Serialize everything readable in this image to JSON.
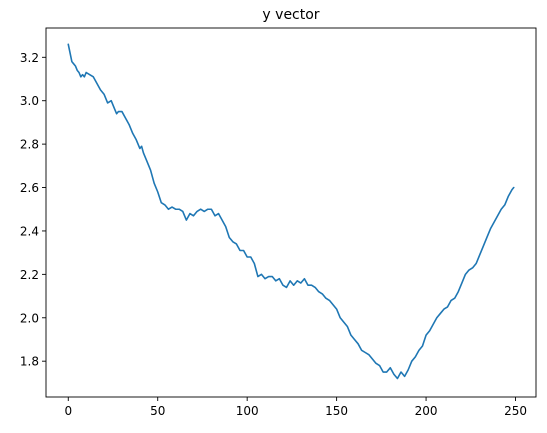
{
  "chart_data": {
    "type": "line",
    "title": "y vector",
    "xlabel": "",
    "ylabel": "",
    "xlim": [
      -12.45,
      261.45
    ],
    "ylim": [
      1.635,
      3.335
    ],
    "xticks": [
      0,
      50,
      100,
      150,
      200,
      250
    ],
    "yticks": [
      1.8,
      2.0,
      2.2,
      2.4,
      2.6,
      2.8,
      3.0,
      3.2
    ],
    "xtick_labels": [
      "0",
      "50",
      "100",
      "150",
      "200",
      "250"
    ],
    "ytick_labels": [
      "1.8",
      "2.0",
      "2.2",
      "2.4",
      "2.6",
      "2.8",
      "3.0",
      "3.2"
    ],
    "grid": false,
    "legend": false,
    "series": [
      {
        "color": "#1f77b4",
        "x": [
          0,
          1,
          2,
          3,
          4,
          5,
          6,
          7,
          8,
          9,
          10,
          12,
          14,
          16,
          18,
          20,
          22,
          24,
          26,
          27,
          28,
          30,
          32,
          34,
          35,
          36,
          38,
          40,
          41,
          42,
          44,
          46,
          48,
          50,
          52,
          54,
          56,
          58,
          60,
          62,
          64,
          66,
          68,
          70,
          72,
          74,
          76,
          78,
          80,
          82,
          84,
          86,
          88,
          90,
          92,
          94,
          96,
          98,
          100,
          102,
          104,
          106,
          108,
          110,
          112,
          114,
          116,
          118,
          120,
          122,
          124,
          126,
          128,
          130,
          132,
          134,
          136,
          138,
          140,
          142,
          144,
          146,
          148,
          150,
          152,
          154,
          156,
          158,
          160,
          162,
          164,
          166,
          168,
          170,
          172,
          174,
          176,
          178,
          180,
          182,
          184,
          186,
          188,
          190,
          192,
          194,
          196,
          198,
          200,
          202,
          204,
          206,
          208,
          210,
          212,
          214,
          216,
          218,
          220,
          222,
          224,
          226,
          228,
          230,
          232,
          234,
          236,
          238,
          240,
          242,
          244,
          246,
          248,
          249
        ],
        "y": [
          3.26,
          3.22,
          3.18,
          3.17,
          3.16,
          3.14,
          3.13,
          3.11,
          3.12,
          3.11,
          3.13,
          3.12,
          3.11,
          3.08,
          3.05,
          3.03,
          2.99,
          3.0,
          2.96,
          2.94,
          2.95,
          2.95,
          2.92,
          2.89,
          2.87,
          2.85,
          2.82,
          2.78,
          2.79,
          2.76,
          2.72,
          2.68,
          2.62,
          2.58,
          2.53,
          2.52,
          2.5,
          2.51,
          2.5,
          2.5,
          2.49,
          2.45,
          2.48,
          2.47,
          2.49,
          2.5,
          2.49,
          2.5,
          2.5,
          2.47,
          2.48,
          2.45,
          2.42,
          2.37,
          2.35,
          2.34,
          2.31,
          2.31,
          2.28,
          2.28,
          2.25,
          2.19,
          2.2,
          2.18,
          2.19,
          2.19,
          2.17,
          2.18,
          2.15,
          2.14,
          2.17,
          2.15,
          2.17,
          2.16,
          2.18,
          2.15,
          2.15,
          2.14,
          2.12,
          2.11,
          2.09,
          2.08,
          2.06,
          2.04,
          2.0,
          1.98,
          1.96,
          1.92,
          1.9,
          1.88,
          1.85,
          1.84,
          1.83,
          1.81,
          1.79,
          1.78,
          1.75,
          1.75,
          1.77,
          1.74,
          1.72,
          1.75,
          1.73,
          1.76,
          1.8,
          1.82,
          1.85,
          1.87,
          1.92,
          1.94,
          1.97,
          2.0,
          2.02,
          2.04,
          2.05,
          2.08,
          2.09,
          2.12,
          2.16,
          2.2,
          2.22,
          2.23,
          2.25,
          2.29,
          2.33,
          2.37,
          2.41,
          2.44,
          2.47,
          2.5,
          2.52,
          2.56,
          2.59,
          2.6
        ]
      }
    ]
  }
}
